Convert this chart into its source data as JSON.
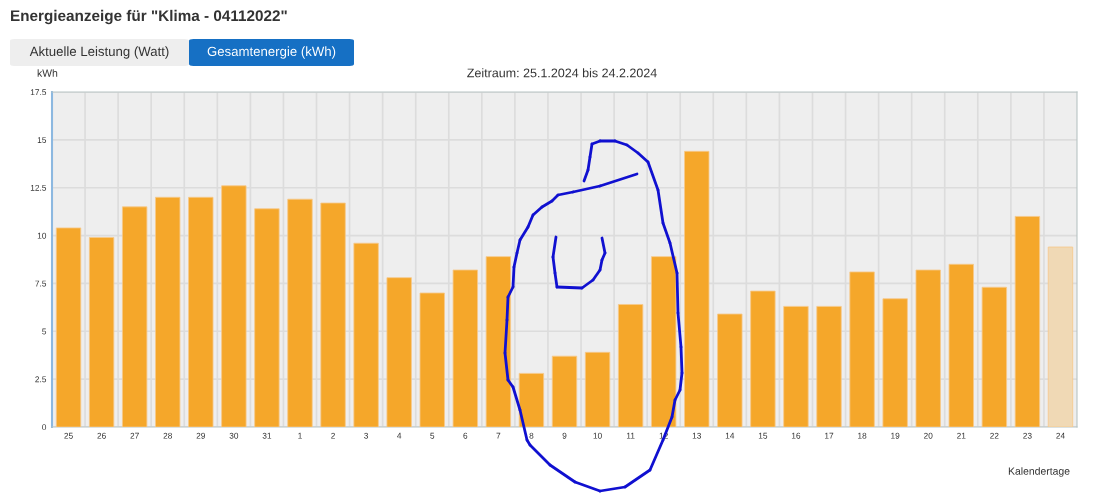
{
  "chart_data": {
    "type": "bar",
    "title": "Energieanzeige für \"Klima - 04112022\"",
    "subtitle": "Zeitraum: 25.1.2024 bis 24.2.2024",
    "ylabel": "kWh",
    "xlabel": "Kalendertage",
    "annotations": [
      "Aktuelle Leistung (Watt)",
      "Gesamtenergie (kWh)"
    ],
    "categories": [
      "25",
      "26",
      "27",
      "28",
      "29",
      "30",
      "31",
      "1",
      "2",
      "3",
      "4",
      "5",
      "6",
      "7",
      "8",
      "9",
      "10",
      "11",
      "12",
      "13",
      "14",
      "15",
      "16",
      "17",
      "18",
      "19",
      "20",
      "21",
      "22",
      "23",
      "24"
    ],
    "values": [
      10.4,
      9.9,
      11.5,
      12.0,
      12.0,
      12.6,
      11.4,
      11.9,
      11.7,
      9.6,
      7.8,
      7.0,
      8.2,
      8.9,
      2.8,
      3.7,
      3.9,
      6.4,
      8.9,
      14.4,
      5.9,
      7.1,
      6.3,
      6.3,
      8.1,
      6.7,
      8.2,
      8.5,
      7.3,
      11.0,
      9.4
    ],
    "colors": [
      "#f5a72a",
      "#f5a72a",
      "#f5a72a",
      "#f5a72a",
      "#f5a72a",
      "#f5a72a",
      "#f5a72a",
      "#f5a72a",
      "#f5a72a",
      "#f5a72a",
      "#f5a72a",
      "#f5a72a",
      "#f5a72a",
      "#f5a72a",
      "#f5a72a",
      "#f5a72a",
      "#f5a72a",
      "#f5a72a",
      "#f5a72a",
      "#f5a72a",
      "#f5a72a",
      "#f5a72a",
      "#f5a72a",
      "#f5a72a",
      "#f5a72a",
      "#f5a72a",
      "#f5a72a",
      "#f5a72a",
      "#f5a72a",
      "#f5a72a",
      "#f0d9b5"
    ],
    "ylim": [
      0,
      17.5
    ],
    "yticks": [
      0,
      2.5,
      5,
      7.5,
      10,
      12.5,
      15,
      17.5
    ],
    "grid": true
  }
}
